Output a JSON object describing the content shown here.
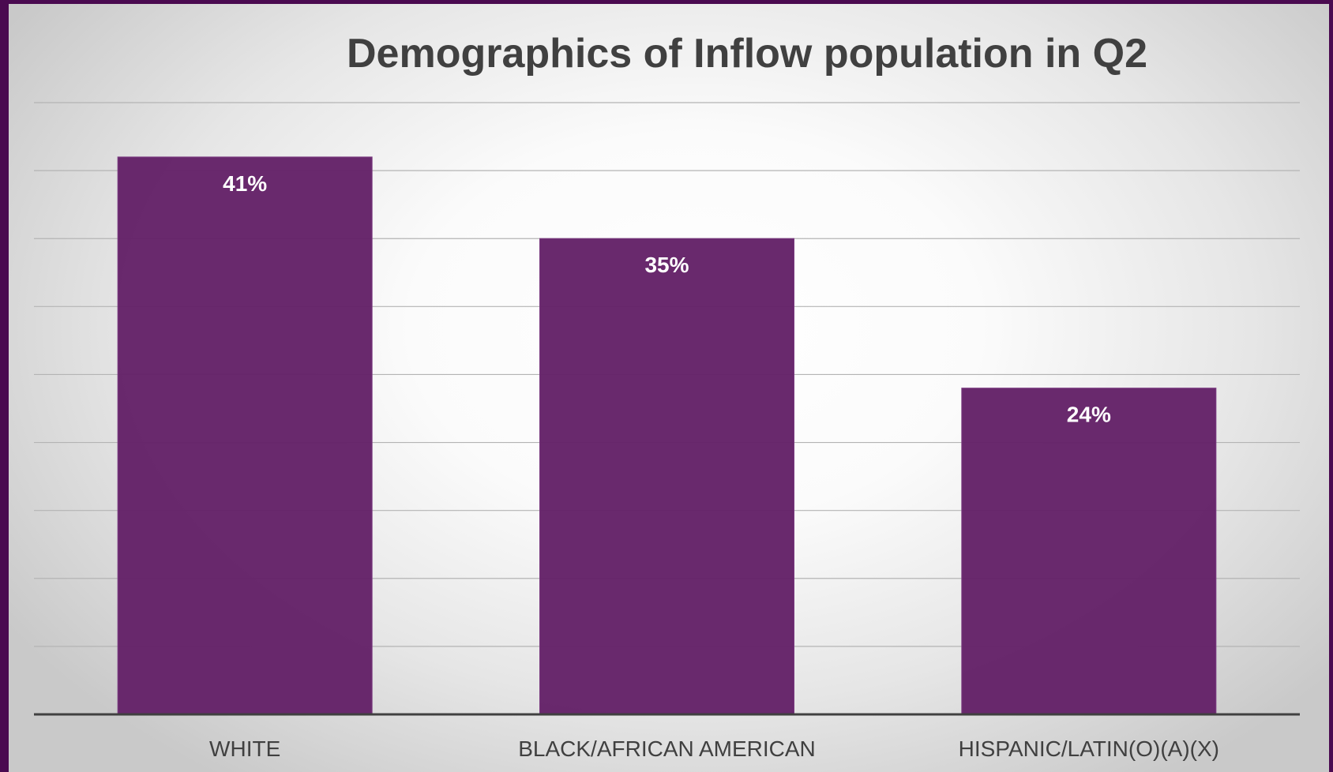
{
  "chart_data": {
    "type": "bar",
    "title": "Demographics of Inflow population in Q2",
    "categories": [
      "WHITE",
      "BLACK/AFRICAN AMERICAN",
      "HISPANIC/LATIN(O)(A)(X)"
    ],
    "values": [
      41,
      35,
      24
    ],
    "data_labels": [
      "41%",
      "35%",
      "24%"
    ],
    "ylim": [
      0,
      45
    ],
    "y_gridline_step": 5,
    "grid": true,
    "legend": "none",
    "xlabel": "",
    "ylabel": ""
  },
  "colors": {
    "bar": "#642268",
    "frame": "#4a0a50",
    "title": "#404040",
    "gridline": "#b4b4b4",
    "axis": "#404040",
    "data_label": "#ffffff"
  }
}
